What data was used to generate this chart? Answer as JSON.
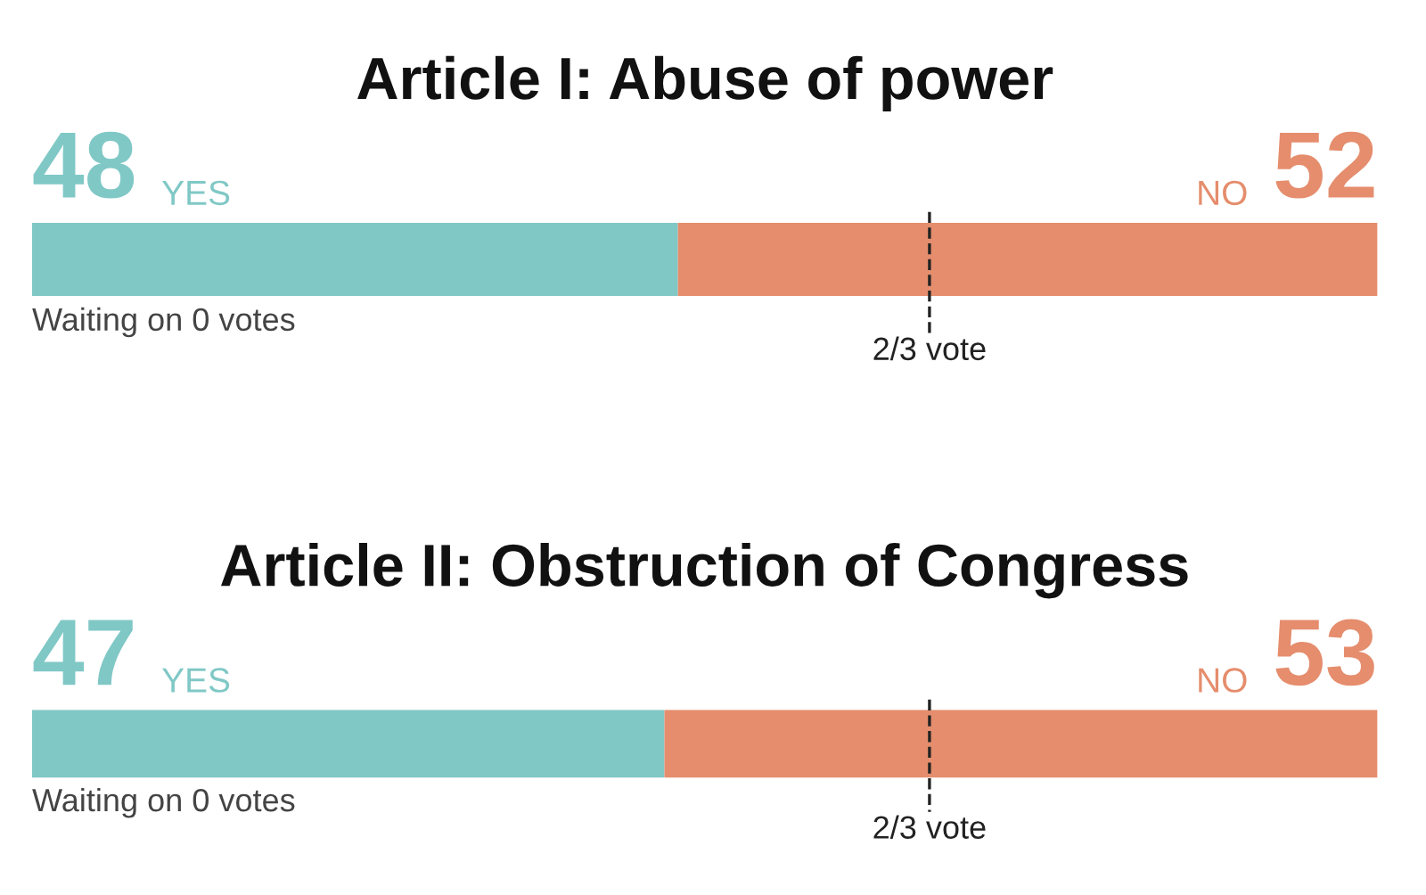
{
  "chart_data": [
    {
      "type": "bar",
      "orientation": "horizontal",
      "stacked": true,
      "title": "Article I: Abuse of power",
      "categories": [
        null
      ],
      "xlim": [
        0,
        100
      ],
      "tick_labels": false,
      "grid": false,
      "data_labels": true,
      "series": [
        {
          "name": "YES",
          "color": "#80c8c6",
          "values": [
            48
          ]
        },
        {
          "name": "NO",
          "color": "#e58d6d",
          "values": [
            52
          ]
        }
      ],
      "ref_lines": [
        {
          "axis": "x",
          "value": 66.7,
          "label": "2/3 vote",
          "line_style": "dashed",
          "color": "#222222"
        }
      ],
      "annotations": [
        "Waiting on 0 votes"
      ]
    },
    {
      "type": "bar",
      "orientation": "horizontal",
      "stacked": true,
      "title": "Article II: Obstruction of Congress",
      "categories": [
        null
      ],
      "xlim": [
        0,
        100
      ],
      "tick_labels": false,
      "grid": false,
      "data_labels": true,
      "series": [
        {
          "name": "YES",
          "color": "#80c8c6",
          "values": [
            47
          ]
        },
        {
          "name": "NO",
          "color": "#e58d6d",
          "values": [
            53
          ]
        }
      ],
      "ref_lines": [
        {
          "axis": "x",
          "value": 66.7,
          "label": "2/3 vote",
          "line_style": "dashed",
          "color": "#222222"
        }
      ],
      "annotations": [
        "Waiting on 0 votes"
      ]
    }
  ]
}
